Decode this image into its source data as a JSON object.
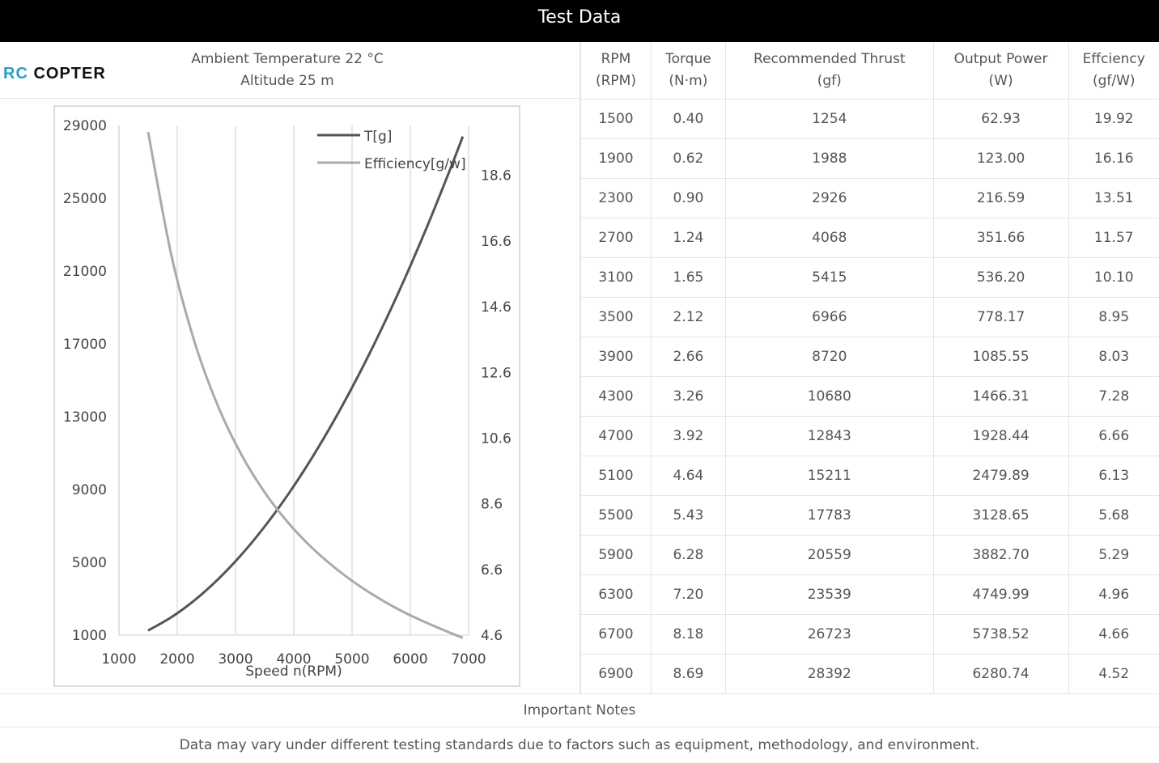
{
  "title": "Test Data",
  "logo": {
    "part1": "RC",
    "part2": "COPTER"
  },
  "conditions": {
    "temperature": "Ambient Temperature  22 °C",
    "altitude": "Altitude  25 m"
  },
  "table": {
    "headers": [
      [
        "RPM",
        "(RPM)"
      ],
      [
        "Torque",
        "(N·m)"
      ],
      [
        "Recommended Thrust",
        "(gf)"
      ],
      [
        "Output Power",
        "(W)"
      ],
      [
        "Effciency",
        "(gf/W)"
      ]
    ],
    "rows": [
      [
        "1500",
        "0.40",
        "1254",
        "62.93",
        "19.92"
      ],
      [
        "1900",
        "0.62",
        "1988",
        "123.00",
        "16.16"
      ],
      [
        "2300",
        "0.90",
        "2926",
        "216.59",
        "13.51"
      ],
      [
        "2700",
        "1.24",
        "4068",
        "351.66",
        "11.57"
      ],
      [
        "3100",
        "1.65",
        "5415",
        "536.20",
        "10.10"
      ],
      [
        "3500",
        "2.12",
        "6966",
        "778.17",
        "8.95"
      ],
      [
        "3900",
        "2.66",
        "8720",
        "1085.55",
        "8.03"
      ],
      [
        "4300",
        "3.26",
        "10680",
        "1466.31",
        "7.28"
      ],
      [
        "4700",
        "3.92",
        "12843",
        "1928.44",
        "6.66"
      ],
      [
        "5100",
        "4.64",
        "15211",
        "2479.89",
        "6.13"
      ],
      [
        "5500",
        "5.43",
        "17783",
        "3128.65",
        "5.68"
      ],
      [
        "5900",
        "6.28",
        "20559",
        "3882.70",
        "5.29"
      ],
      [
        "6300",
        "7.20",
        "23539",
        "4749.99",
        "4.96"
      ],
      [
        "6700",
        "8.18",
        "26723",
        "5738.52",
        "4.66"
      ],
      [
        "6900",
        "8.69",
        "28392",
        "6280.74",
        "4.52"
      ]
    ]
  },
  "notes": {
    "heading": "Important Notes",
    "text": "Data may vary under different testing standards due to factors such as equipment, methodology, and environment."
  },
  "chart_data": {
    "type": "line",
    "xlabel": "Speed n(RPM)",
    "xlim": [
      1000,
      7000
    ],
    "xticks": [
      "1000",
      "2000",
      "3000",
      "4000",
      "5000",
      "6000",
      "7000"
    ],
    "ylim_left": [
      1000,
      29000
    ],
    "yticks_left": [
      "1000",
      "5000",
      "9000",
      "13000",
      "17000",
      "21000",
      "25000",
      "29000"
    ],
    "ylim_right": [
      4.6,
      20.12
    ],
    "yticks_right": [
      "4.6",
      "6.6",
      "8.6",
      "10.6",
      "12.6",
      "14.6",
      "16.6",
      "18.6"
    ],
    "grid": "vertical",
    "legend": "top-right",
    "x": [
      1500,
      1900,
      2300,
      2700,
      3100,
      3500,
      3900,
      4300,
      4700,
      5100,
      5500,
      5900,
      6300,
      6700,
      6900
    ],
    "series": [
      {
        "name": "T[g]",
        "axis": "left",
        "color": "#555555",
        "values": [
          1254,
          1988,
          2926,
          4068,
          5415,
          6966,
          8720,
          10680,
          12843,
          15211,
          17783,
          20559,
          23539,
          26723,
          28392
        ]
      },
      {
        "name": "Efficiency[g/w]",
        "axis": "right",
        "color": "#aaaaaa",
        "values": [
          19.92,
          16.16,
          13.51,
          11.57,
          10.1,
          8.95,
          8.03,
          7.28,
          6.66,
          6.13,
          5.68,
          5.29,
          4.96,
          4.66,
          4.52
        ]
      }
    ]
  }
}
